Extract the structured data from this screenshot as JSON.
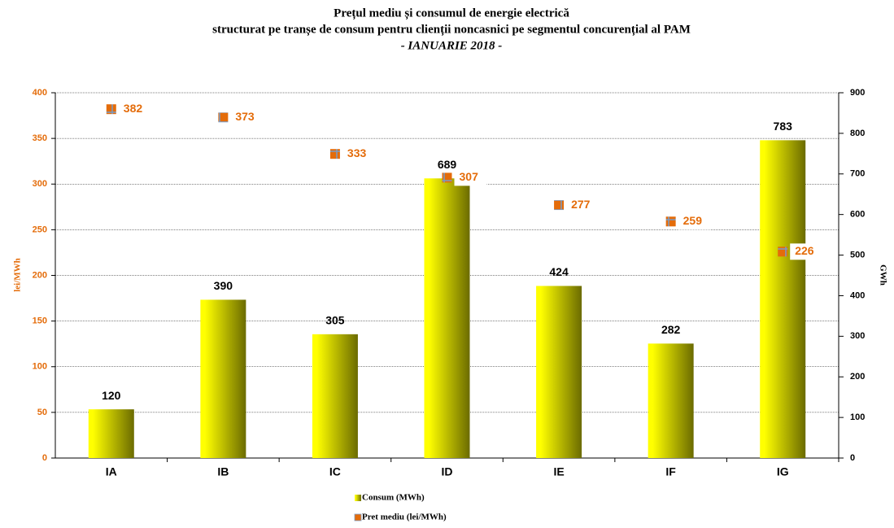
{
  "chart_data": {
    "type": "bar",
    "title": "Prețul mediu și consumul de energie electrică",
    "subtitle": "structurat pe tranșe de consum pentru clienții noncasnici pe segmentul  concurențial al PAM",
    "period": "- IANUARIE 2018 -",
    "y_label": "lei/MWh",
    "y2_label": "GWh",
    "categories": [
      "IA",
      "IB",
      "IC",
      "ID",
      "IE",
      "IF",
      "IG"
    ],
    "series": [
      {
        "name": "Consum (MWh)",
        "type": "bar",
        "axis": "y2",
        "color": "#ffff00",
        "values": [
          120,
          390,
          305,
          689,
          424,
          282,
          783
        ]
      },
      {
        "name": "Pret mediu (lei/MWh)",
        "type": "scatter",
        "axis": "y",
        "color": "#e46c0a",
        "values": [
          382,
          373,
          333,
          307,
          277,
          259,
          226
        ]
      }
    ],
    "ylim": [
      0,
      400
    ],
    "yticks": [
      0,
      50,
      100,
      150,
      200,
      250,
      300,
      350,
      400
    ],
    "y2lim": [
      0,
      900
    ],
    "y2ticks": [
      0,
      100,
      200,
      300,
      400,
      500,
      600,
      700,
      800,
      900
    ],
    "grid": true
  }
}
